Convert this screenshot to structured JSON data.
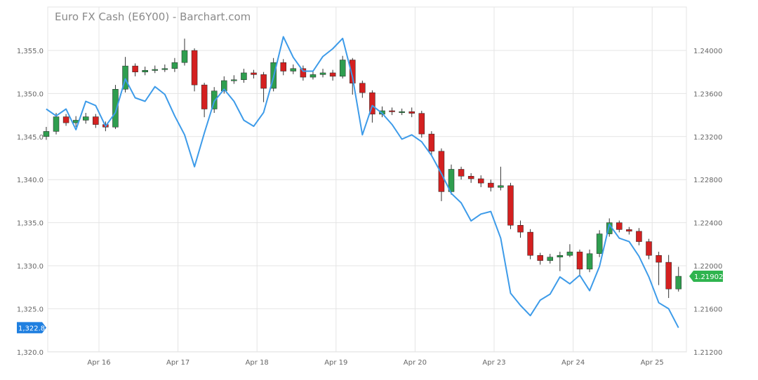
{
  "chart_data": {
    "type": "candlestick+line",
    "title": "Euro FX Cash (E6Y00) - Barchart.com",
    "x_tick_labels": [
      "Apr 16",
      "Apr 17",
      "Apr 18",
      "Apr 19",
      "Apr 20",
      "Apr 23",
      "Apr 24",
      "Apr 25"
    ],
    "trading_days": [
      "Apr 15",
      "Apr 16",
      "Apr 17",
      "Apr 18",
      "Apr 19",
      "Apr 20",
      "Apr 23",
      "Apr 24",
      "Apr 25"
    ],
    "left_axis": {
      "ticks": [
        1355,
        1350,
        1345,
        1340,
        1335,
        1330,
        1325,
        1320
      ],
      "tick_labels": [
        "1,355.0",
        "1,350.0",
        "1,345.0",
        "1,340.0",
        "1,335.0",
        "1,330.0",
        "1,325.0",
        "1,320.0"
      ],
      "range": [
        1320,
        1360
      ],
      "last_value_tag": "1,322.8",
      "last_value": 1322.8
    },
    "right_axis": {
      "ticks": [
        1.24,
        1.236,
        1.232,
        1.228,
        1.224,
        1.22,
        1.216,
        1.212
      ],
      "tick_labels": [
        "1.24000",
        "1.23600",
        "1.23200",
        "1.22800",
        "1.22400",
        "1.22000",
        "1.21600",
        "1.21200"
      ],
      "range": [
        1.212,
        1.244
      ],
      "last_value_tag": "1.21902",
      "last_value": 1.21902
    },
    "grid": true,
    "colors": {
      "up": "#2f9e4f",
      "down": "#d42020",
      "wick": "#333333",
      "line": "#3d9be9",
      "last_tag_right": "#2fb44f",
      "last_tag_left": "#1f7fe0",
      "grid": "#e4e4e4"
    },
    "times": [
      "Apr 15 08:00",
      "Apr 15 11:00",
      "Apr 15 14:00",
      "Apr 15 17:00",
      "Apr 15 20:00",
      "Apr 15 23:00",
      "Apr 16 02:00",
      "Apr 16 05:00",
      "Apr 16 08:00",
      "Apr 16 11:00",
      "Apr 16 14:00",
      "Apr 16 17:00",
      "Apr 16 20:00",
      "Apr 16 23:00",
      "Apr 17 02:00",
      "Apr 17 05:00",
      "Apr 17 08:00",
      "Apr 17 11:00",
      "Apr 17 14:00",
      "Apr 17 17:00",
      "Apr 17 20:00",
      "Apr 17 23:00",
      "Apr 18 02:00",
      "Apr 18 05:00",
      "Apr 18 08:00",
      "Apr 18 11:00",
      "Apr 18 14:00",
      "Apr 18 17:00",
      "Apr 18 20:00",
      "Apr 18 23:00",
      "Apr 19 02:00",
      "Apr 19 05:00",
      "Apr 19 08:00",
      "Apr 19 11:00",
      "Apr 19 14:00",
      "Apr 19 17:00",
      "Apr 19 20:00",
      "Apr 19 23:00",
      "Apr 20 02:00",
      "Apr 20 05:00",
      "Apr 20 08:00",
      "Apr 20 11:00",
      "Apr 20 14:00",
      "Apr 20 17:00",
      "Apr 20 20:00",
      "Apr 20 23:00",
      "Apr 23 02:00",
      "Apr 23 05:00",
      "Apr 23 08:00",
      "Apr 23 11:00",
      "Apr 23 14:00",
      "Apr 23 17:00",
      "Apr 23 20:00",
      "Apr 23 23:00",
      "Apr 24 02:00",
      "Apr 24 05:00",
      "Apr 24 08:00",
      "Apr 24 11:00",
      "Apr 24 14:00",
      "Apr 24 17:00",
      "Apr 24 20:00",
      "Apr 24 23:00",
      "Apr 25 02:00",
      "Apr 25 05:00",
      "Apr 25 08:00"
    ],
    "candles_axis": "right",
    "ohlc": [
      [
        1.232,
        1.2329,
        1.2317,
        1.23248
      ],
      [
        1.23248,
        1.2342,
        1.2322,
        1.23384
      ],
      [
        1.23384,
        1.2341,
        1.233,
        1.23328
      ],
      [
        1.23328,
        1.2339,
        1.2329,
        1.23352
      ],
      [
        1.23352,
        1.2342,
        1.2332,
        1.23384
      ],
      [
        1.23384,
        1.2341,
        1.2328,
        1.23312
      ],
      [
        1.23312,
        1.2334,
        1.2325,
        1.23288
      ],
      [
        1.23288,
        1.2368,
        1.2327,
        1.2364
      ],
      [
        1.2364,
        1.2394,
        1.2361,
        1.23856
      ],
      [
        1.23856,
        1.2388,
        1.2376,
        1.238
      ],
      [
        1.238,
        1.2385,
        1.2377,
        1.23816
      ],
      [
        1.23816,
        1.2386,
        1.2379,
        1.23824
      ],
      [
        1.23824,
        1.2387,
        1.238,
        1.23832
      ],
      [
        1.23832,
        1.2393,
        1.238,
        1.23888
      ],
      [
        1.23888,
        1.2411,
        1.2386,
        1.24
      ],
      [
        1.24,
        1.2402,
        1.2362,
        1.2368
      ],
      [
        1.2368,
        1.237,
        1.2338,
        1.23456
      ],
      [
        1.23456,
        1.2366,
        1.2342,
        1.23624
      ],
      [
        1.23624,
        1.2376,
        1.236,
        1.2372
      ],
      [
        1.2372,
        1.2377,
        1.2369,
        1.23728
      ],
      [
        1.23728,
        1.2383,
        1.237,
        1.23792
      ],
      [
        1.23792,
        1.2382,
        1.2374,
        1.23776
      ],
      [
        1.23776,
        1.238,
        1.2352,
        1.23648
      ],
      [
        1.23648,
        1.2393,
        1.2362,
        1.23888
      ],
      [
        1.23888,
        1.2392,
        1.2377,
        1.23808
      ],
      [
        1.23808,
        1.2387,
        1.2378,
        1.23832
      ],
      [
        1.23832,
        1.2386,
        1.2372,
        1.23752
      ],
      [
        1.23752,
        1.2381,
        1.2373,
        1.23776
      ],
      [
        1.23776,
        1.2383,
        1.2375,
        1.23792
      ],
      [
        1.23792,
        1.2382,
        1.2372,
        1.2376
      ],
      [
        1.2376,
        1.2395,
        1.2374,
        1.23912
      ],
      [
        1.23912,
        1.2393,
        1.2359,
        1.23696
      ],
      [
        1.23696,
        1.2372,
        1.2356,
        1.23608
      ],
      [
        1.23608,
        1.2363,
        1.2333,
        1.23408
      ],
      [
        1.23408,
        1.2348,
        1.2338,
        1.2344
      ],
      [
        1.2344,
        1.2347,
        1.234,
        1.23432
      ],
      [
        1.23432,
        1.2346,
        1.234,
        1.23432
      ],
      [
        1.23432,
        1.2347,
        1.2338,
        1.23416
      ],
      [
        1.23416,
        1.2344,
        1.2319,
        1.23224
      ],
      [
        1.23224,
        1.2325,
        1.2302,
        1.23064
      ],
      [
        1.23064,
        1.2309,
        1.226,
        1.22688
      ],
      [
        1.22688,
        1.2294,
        1.2266,
        1.22896
      ],
      [
        1.22896,
        1.2292,
        1.228,
        1.22832
      ],
      [
        1.22832,
        1.2286,
        1.2277,
        1.22808
      ],
      [
        1.22808,
        1.2284,
        1.2273,
        1.22768
      ],
      [
        1.22768,
        1.228,
        1.2269,
        1.22728
      ],
      [
        1.22728,
        1.2292,
        1.227,
        1.22744
      ],
      [
        1.22744,
        1.2277,
        1.2234,
        1.22376
      ],
      [
        1.22376,
        1.2242,
        1.2226,
        1.22312
      ],
      [
        1.22312,
        1.2234,
        1.2206,
        1.22096
      ],
      [
        1.22096,
        1.2212,
        1.2201,
        1.22048
      ],
      [
        1.22048,
        1.2211,
        1.2202,
        1.2208
      ],
      [
        1.2208,
        1.2213,
        1.2195,
        1.22096
      ],
      [
        1.22096,
        1.222,
        1.2208,
        1.22128
      ],
      [
        1.22128,
        1.2215,
        1.219,
        1.21968
      ],
      [
        1.21968,
        1.2215,
        1.2194,
        1.22112
      ],
      [
        1.22112,
        1.2233,
        1.2208,
        1.22296
      ],
      [
        1.22296,
        1.2244,
        1.2227,
        1.224
      ],
      [
        1.224,
        1.2242,
        1.2231,
        1.22336
      ],
      [
        1.22336,
        1.2236,
        1.2229,
        1.2232
      ],
      [
        1.2232,
        1.2235,
        1.2219,
        1.22224
      ],
      [
        1.22224,
        1.2225,
        1.2206,
        1.22096
      ],
      [
        1.22096,
        1.2213,
        1.2182,
        1.22032
      ],
      [
        1.22032,
        1.221,
        1.217,
        1.21784
      ],
      [
        1.21784,
        1.2199,
        1.2176,
        1.21902
      ]
    ],
    "line_axis": "left",
    "line_values": [
      1348.2,
      1347.4,
      1348.2,
      1345.8,
      1349.1,
      1348.6,
      1346.2,
      1347.8,
      1351.7,
      1349.5,
      1349.1,
      1350.8,
      1349.9,
      1347.4,
      1345.2,
      1341.5,
      1345.4,
      1349.1,
      1350.5,
      1349.1,
      1346.9,
      1346.2,
      1347.8,
      1351.9,
      1356.6,
      1354.2,
      1352.6,
      1352.6,
      1354.3,
      1355.2,
      1356.4,
      1351.9,
      1345.2,
      1348.6,
      1347.7,
      1346.4,
      1344.7,
      1345.2,
      1344.4,
      1342.8,
      1340.7,
      1338.4,
      1337.3,
      1335.2,
      1336.0,
      1336.3,
      1333.2,
      1326.8,
      1325.4,
      1324.2,
      1326.0,
      1326.7,
      1328.7,
      1327.9,
      1328.9,
      1327.1,
      1329.9,
      1334.8,
      1333.2,
      1332.8,
      1331.1,
      1328.7,
      1325.7,
      1325.0,
      1322.8
    ]
  }
}
